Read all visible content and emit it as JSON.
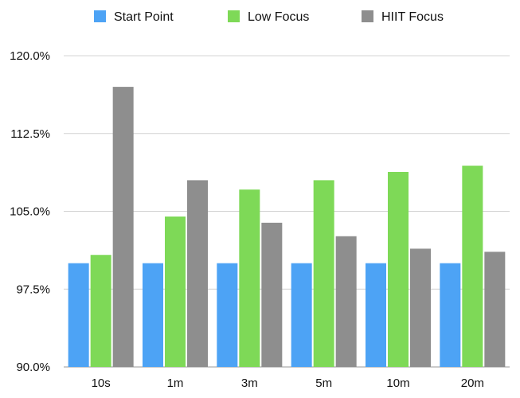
{
  "chart_data": {
    "type": "bar",
    "title": "",
    "xlabel": "",
    "ylabel": "",
    "categories": [
      "10s",
      "1m",
      "3m",
      "5m",
      "10m",
      "20m"
    ],
    "series": [
      {
        "name": "Start Point",
        "color": "#4DA3F5",
        "values": [
          100.0,
          100.0,
          100.0,
          100.0,
          100.0,
          100.0
        ]
      },
      {
        "name": "Low Focus",
        "color": "#7ED957",
        "values": [
          100.8,
          104.5,
          107.1,
          108.0,
          108.8,
          109.4
        ]
      },
      {
        "name": "HIIT Focus",
        "color": "#8E8E8E",
        "values": [
          117.0,
          108.0,
          103.9,
          102.6,
          101.4,
          101.1
        ]
      }
    ],
    "ylim": [
      90,
      120
    ],
    "yticks": [
      90,
      97.5,
      105,
      112.5,
      120
    ],
    "ytick_labels": [
      "90.0%",
      "97.5%",
      "105.0%",
      "112.5%",
      "120.0%"
    ],
    "grid": true,
    "legend_position": "top"
  }
}
